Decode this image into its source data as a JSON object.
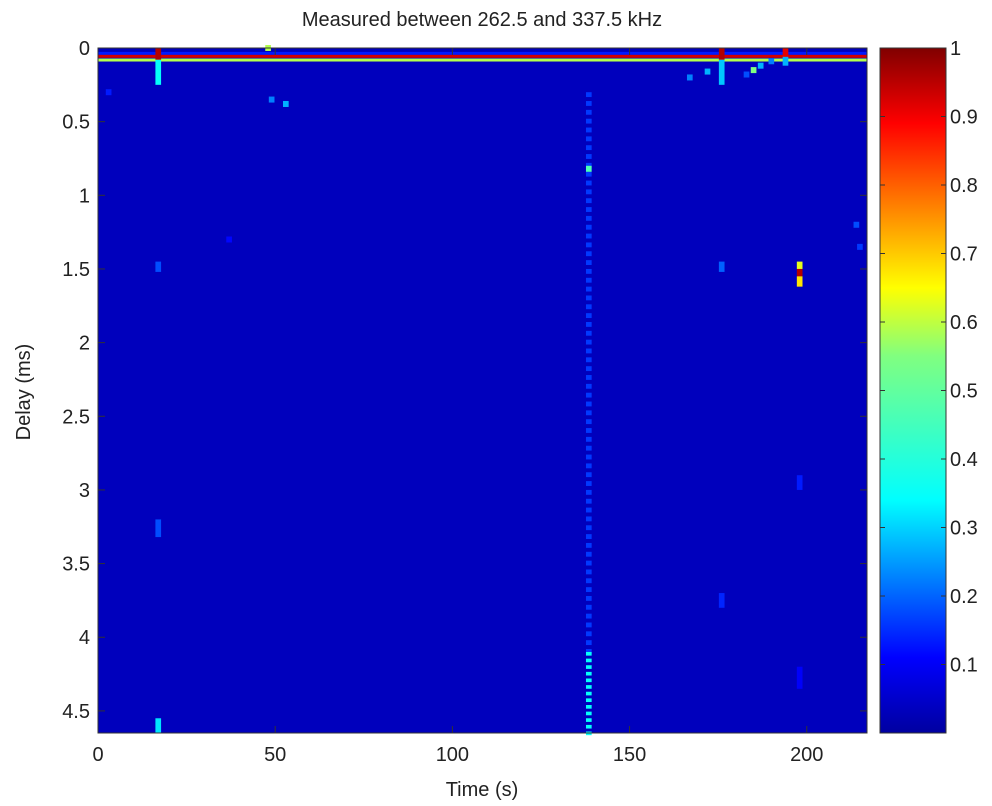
{
  "chart_data": {
    "type": "heatmap",
    "title": "Measured between 262.5 and 337.5 kHz",
    "xlabel": "Time (s)",
    "ylabel": "Delay (ms)",
    "xlim": [
      0,
      217
    ],
    "ylim": [
      0,
      4.65
    ],
    "y_reversed": true,
    "x_ticks": [
      "0",
      "50",
      "100",
      "150",
      "200"
    ],
    "x_tick_values": [
      0,
      50,
      100,
      150,
      200
    ],
    "y_ticks": [
      "0",
      "0.5",
      "1",
      "1.5",
      "2",
      "2.5",
      "3",
      "3.5",
      "4",
      "4.5"
    ],
    "y_tick_values": [
      0,
      0.5,
      1,
      1.5,
      2,
      2.5,
      3,
      3.5,
      4,
      4.5
    ],
    "colormap": "jet",
    "background_value": 0.06,
    "colorbar": {
      "range": [
        0,
        1
      ],
      "ticks": [
        "0.1",
        "0.2",
        "0.3",
        "0.4",
        "0.5",
        "0.6",
        "0.7",
        "0.8",
        "0.9",
        "1"
      ],
      "tick_values": [
        0.1,
        0.2,
        0.3,
        0.4,
        0.5,
        0.6,
        0.7,
        0.8,
        0.9,
        1.0
      ]
    },
    "strong_rows": [
      {
        "delay": 0.04,
        "value": 0.15
      },
      {
        "delay": 0.06,
        "value": 0.92
      },
      {
        "delay": 0.085,
        "value": 0.55
      }
    ],
    "column_segments": [
      {
        "time": 17,
        "delay_start": 0.0,
        "delay_end": 0.08,
        "value": 0.95
      },
      {
        "time": 17,
        "delay_start": 0.08,
        "delay_end": 0.25,
        "value": 0.38
      },
      {
        "time": 17,
        "delay_start": 1.45,
        "delay_end": 1.52,
        "value": 0.2
      },
      {
        "time": 17,
        "delay_start": 3.2,
        "delay_end": 3.32,
        "value": 0.2
      },
      {
        "time": 17,
        "delay_start": 4.55,
        "delay_end": 4.65,
        "value": 0.35
      },
      {
        "time": 176,
        "delay_start": 0.0,
        "delay_end": 0.08,
        "value": 0.95
      },
      {
        "time": 176,
        "delay_start": 0.08,
        "delay_end": 0.25,
        "value": 0.32
      },
      {
        "time": 176,
        "delay_start": 1.45,
        "delay_end": 1.52,
        "value": 0.22
      },
      {
        "time": 176,
        "delay_start": 3.7,
        "delay_end": 3.8,
        "value": 0.16
      },
      {
        "time": 194,
        "delay_start": 0.0,
        "delay_end": 0.06,
        "value": 0.9
      },
      {
        "time": 194,
        "delay_start": 0.06,
        "delay_end": 0.12,
        "value": 0.3
      },
      {
        "time": 198,
        "delay_start": 1.45,
        "delay_end": 1.5,
        "value": 0.6
      },
      {
        "time": 198,
        "delay_start": 1.5,
        "delay_end": 1.55,
        "value": 0.95
      },
      {
        "time": 198,
        "delay_start": 1.55,
        "delay_end": 1.62,
        "value": 0.65
      },
      {
        "time": 198,
        "delay_start": 2.9,
        "delay_end": 3.0,
        "value": 0.15
      },
      {
        "time": 198,
        "delay_start": 4.2,
        "delay_end": 4.35,
        "value": 0.12
      }
    ],
    "point_spots": [
      {
        "time": 138.5,
        "delay": 0.82,
        "value": 0.45
      },
      {
        "time": 49,
        "delay": 0.35,
        "value": 0.25
      },
      {
        "time": 53,
        "delay": 0.38,
        "value": 0.3
      },
      {
        "time": 167,
        "delay": 0.2,
        "value": 0.25
      },
      {
        "time": 172,
        "delay": 0.16,
        "value": 0.3
      },
      {
        "time": 183,
        "delay": 0.18,
        "value": 0.2
      },
      {
        "time": 185,
        "delay": 0.15,
        "value": 0.5
      },
      {
        "time": 187,
        "delay": 0.12,
        "value": 0.3
      },
      {
        "time": 190,
        "delay": 0.09,
        "value": 0.25
      },
      {
        "time": 214,
        "delay": 1.2,
        "value": 0.2
      },
      {
        "time": 215,
        "delay": 1.35,
        "value": 0.18
      },
      {
        "time": 48,
        "delay": 0.0,
        "value": 0.55
      },
      {
        "time": 3,
        "delay": 0.3,
        "value": 0.15
      },
      {
        "time": 37,
        "delay": 1.3,
        "value": 0.13
      }
    ],
    "dashed_columns": [
      {
        "time": 138.5,
        "delay_start": 0.3,
        "delay_end": 4.1,
        "value": 0.18,
        "step": 0.06
      },
      {
        "time": 138.5,
        "delay_start": 4.1,
        "delay_end": 4.65,
        "value": 0.38,
        "step": 0.045
      }
    ]
  }
}
